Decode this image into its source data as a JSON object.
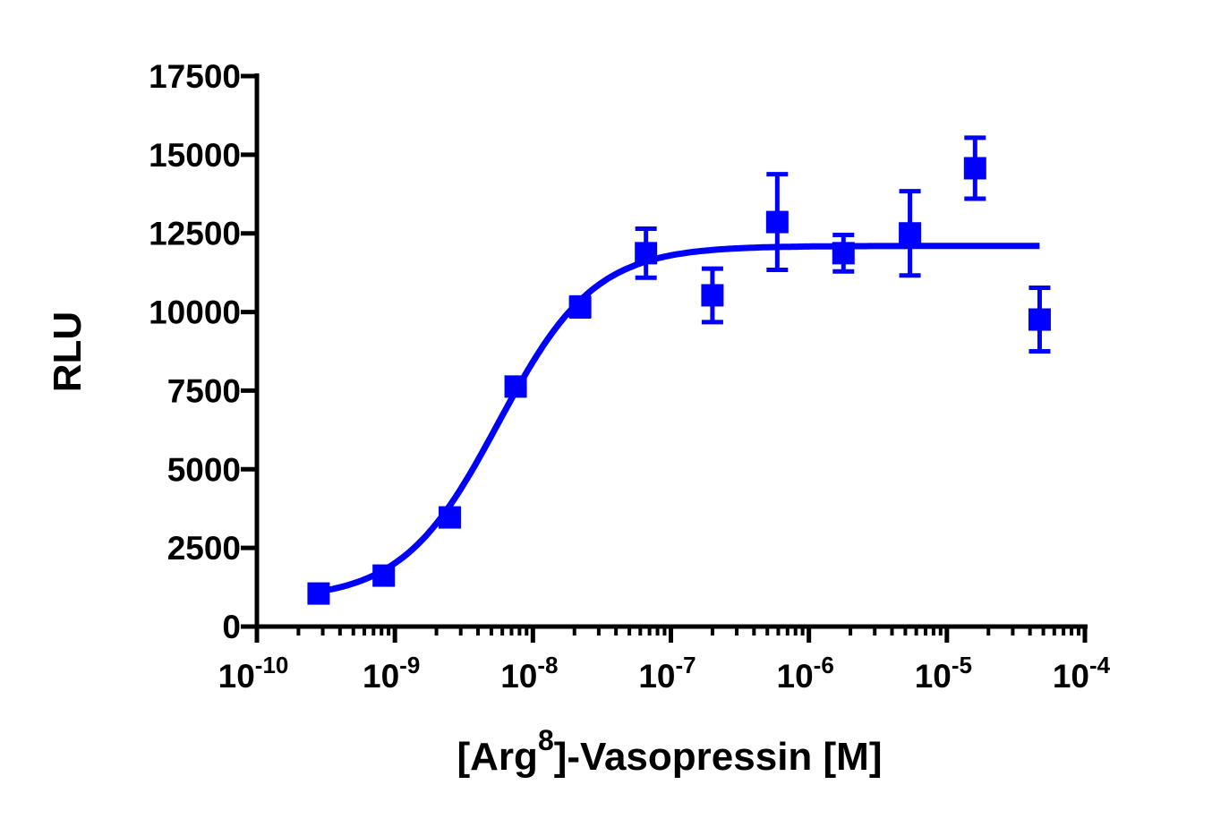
{
  "chart_data": {
    "type": "scatter",
    "xlabel": {
      "prefix": "[Arg",
      "superscript": "8",
      "suffix": "]-Vasopressin [M]"
    },
    "ylabel": "RLU",
    "x_scale": "log",
    "xlim": [
      1e-10,
      0.0001
    ],
    "ylim": [
      0,
      17500
    ],
    "x_ticks": [
      {
        "base": "10",
        "exp": "-10",
        "value": 1e-10
      },
      {
        "base": "10",
        "exp": "-9",
        "value": 1e-09
      },
      {
        "base": "10",
        "exp": "-8",
        "value": 1e-08
      },
      {
        "base": "10",
        "exp": "-7",
        "value": 1e-07
      },
      {
        "base": "10",
        "exp": "-6",
        "value": 1e-06
      },
      {
        "base": "10",
        "exp": "-5",
        "value": 1e-05
      },
      {
        "base": "10",
        "exp": "-4",
        "value": 0.0001
      }
    ],
    "y_ticks": [
      "0",
      "2500",
      "5000",
      "7500",
      "10000",
      "12500",
      "15000",
      "17500"
    ],
    "grid": false,
    "color": "#0000ff",
    "marker": "square",
    "points": [
      {
        "x": 2.8e-10,
        "y": 1050,
        "err": 80
      },
      {
        "x": 8.3e-10,
        "y": 1620,
        "err": 80
      },
      {
        "x": 2.5e-09,
        "y": 3470,
        "err": 100
      },
      {
        "x": 7.5e-09,
        "y": 7630,
        "err": 100
      },
      {
        "x": 2.2e-08,
        "y": 10160,
        "err": 300
      },
      {
        "x": 6.6e-08,
        "y": 11870,
        "err": 780
      },
      {
        "x": 2e-07,
        "y": 10530,
        "err": 850
      },
      {
        "x": 5.9e-07,
        "y": 12860,
        "err": 1520
      },
      {
        "x": 1.78e-06,
        "y": 11870,
        "err": 580
      },
      {
        "x": 5.4e-06,
        "y": 12500,
        "err": 1340
      },
      {
        "x": 1.6e-05,
        "y": 14570,
        "err": 970
      },
      {
        "x": 4.7e-05,
        "y": 9760,
        "err": 1010
      }
    ],
    "fit": {
      "model": "four-parameter logistic",
      "bottom": 850,
      "top": 12100,
      "logEC50": -8.25,
      "hill": 1.25,
      "x_range": [
        2.8e-10,
        4.7e-05
      ]
    }
  }
}
